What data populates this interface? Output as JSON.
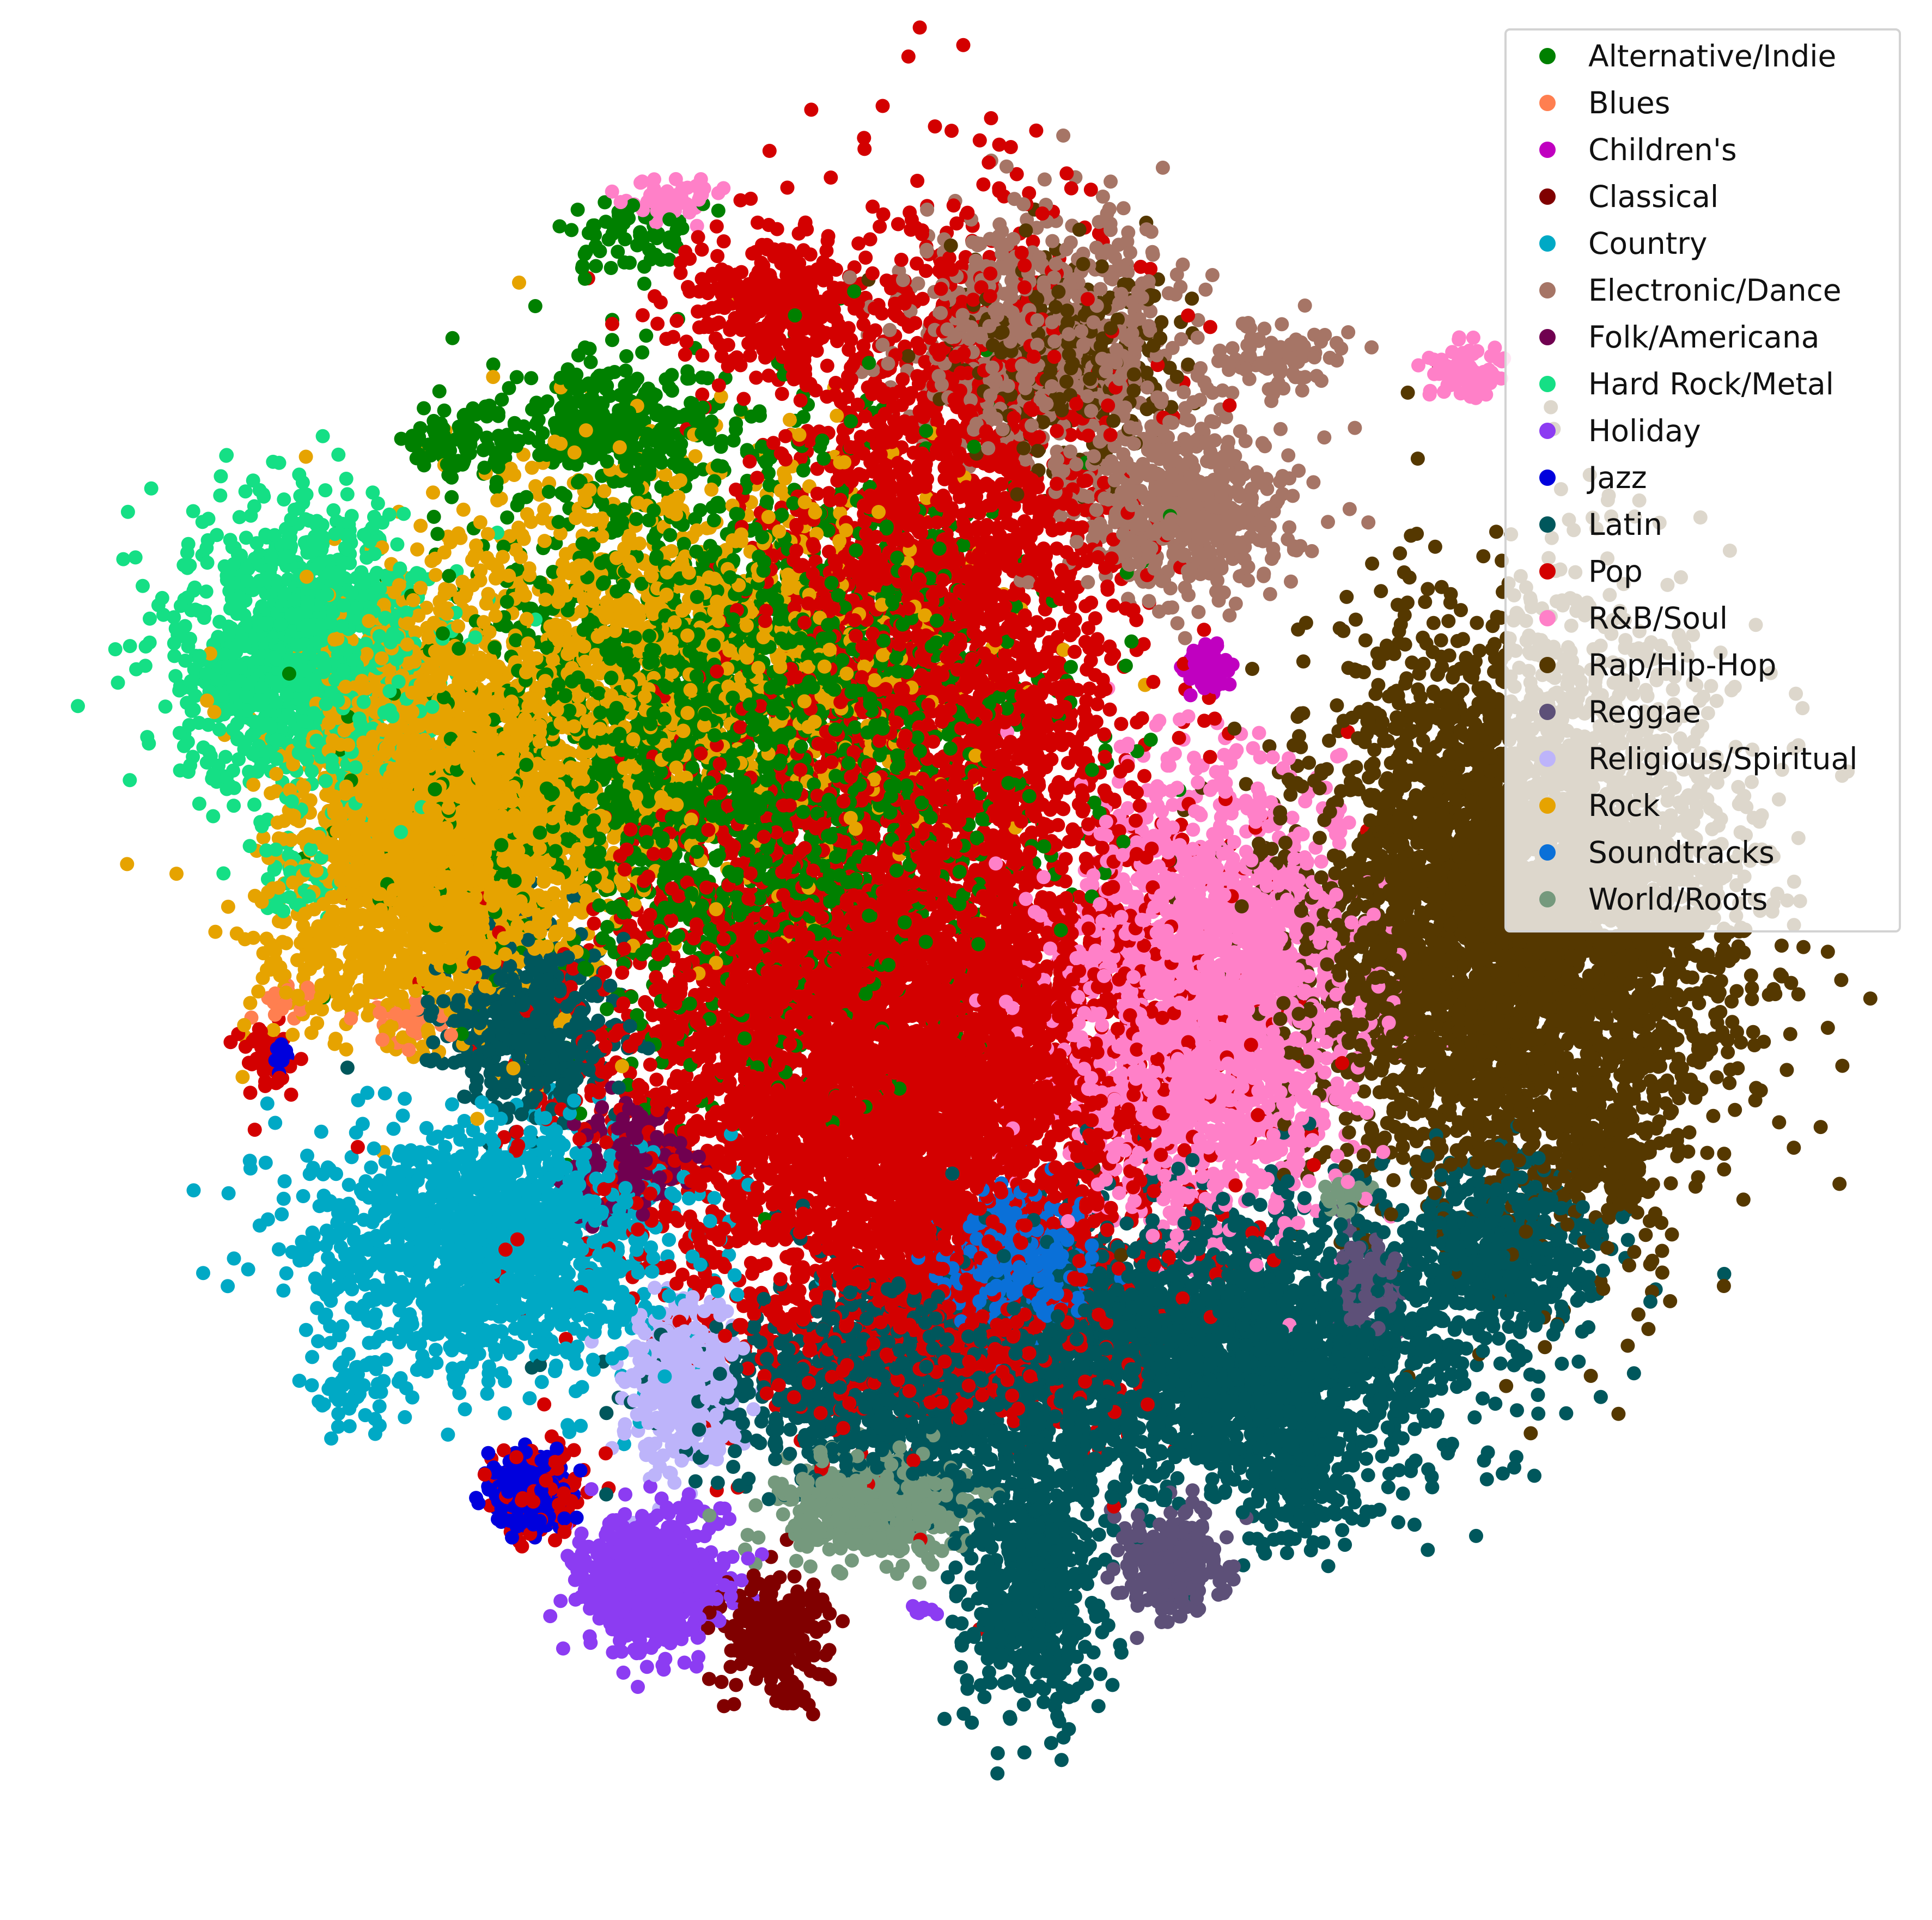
{
  "chart_data": {
    "type": "scatter",
    "title": "",
    "xlabel": "",
    "ylabel": "",
    "axes": "off",
    "grid": false,
    "legend_position": "top-right",
    "xlim": [
      0,
      100
    ],
    "ylim": [
      0,
      100
    ],
    "series": [
      {
        "name": "Alternative/Indie",
        "color": "#008000",
        "clusters": [
          {
            "cx": 36,
            "cy": 63,
            "sx": 8,
            "sy": 8,
            "n": 2600
          },
          {
            "cx": 29,
            "cy": 81,
            "sx": 3,
            "sy": 2,
            "n": 300
          },
          {
            "cx": 20,
            "cy": 80,
            "sx": 1.5,
            "sy": 1,
            "n": 80
          },
          {
            "cx": 30,
            "cy": 92,
            "sx": 2,
            "sy": 1,
            "n": 60
          }
        ]
      },
      {
        "name": "Blues",
        "color": "#ff7f50",
        "clusters": [
          {
            "cx": 17,
            "cy": 47,
            "sx": 1,
            "sy": 0.6,
            "n": 30
          },
          {
            "cx": 10,
            "cy": 48,
            "sx": 0.7,
            "sy": 0.6,
            "n": 15
          }
        ]
      },
      {
        "name": "Children's",
        "color": "#c000c0",
        "clusters": [
          {
            "cx": 63,
            "cy": 67,
            "sx": 0.6,
            "sy": 0.6,
            "n": 70
          }
        ]
      },
      {
        "name": "Classical",
        "color": "#800000",
        "clusters": [
          {
            "cx": 38,
            "cy": 12,
            "sx": 1.6,
            "sy": 1.6,
            "n": 220
          },
          {
            "cx": 39,
            "cy": 8,
            "sx": 0.6,
            "sy": 0.3,
            "n": 15
          }
        ]
      },
      {
        "name": "Country",
        "color": "#00a9c5",
        "clusters": [
          {
            "cx": 22,
            "cy": 34,
            "sx": 5,
            "sy": 3.5,
            "n": 1500
          },
          {
            "cx": 14,
            "cy": 26,
            "sx": 1.2,
            "sy": 1,
            "n": 50
          }
        ]
      },
      {
        "name": "Electronic/Dance",
        "color": "#a67566",
        "clusters": [
          {
            "cx": 54,
            "cy": 86,
            "sx": 4,
            "sy": 3.5,
            "n": 700
          },
          {
            "cx": 62,
            "cy": 76,
            "sx": 3,
            "sy": 2.5,
            "n": 500
          },
          {
            "cx": 67,
            "cy": 85,
            "sx": 2,
            "sy": 1,
            "n": 80
          }
        ]
      },
      {
        "name": "Folk/Americana",
        "color": "#700050",
        "clusters": [
          {
            "cx": 30,
            "cy": 39,
            "sx": 1.4,
            "sy": 1.6,
            "n": 160
          }
        ]
      },
      {
        "name": "Hard Rock/Metal",
        "color": "#15df85",
        "clusters": [
          {
            "cx": 11,
            "cy": 68,
            "sx": 3.5,
            "sy": 4,
            "n": 1300
          },
          {
            "cx": 11,
            "cy": 55,
            "sx": 1.2,
            "sy": 1,
            "n": 40
          }
        ]
      },
      {
        "name": "Holiday",
        "color": "#8c3cf2",
        "clusters": [
          {
            "cx": 31,
            "cy": 15,
            "sx": 2,
            "sy": 1.8,
            "n": 700
          },
          {
            "cx": 47,
            "cy": 13,
            "sx": 0.4,
            "sy": 0.4,
            "n": 8
          }
        ]
      },
      {
        "name": "Jazz",
        "color": "#0000dd",
        "clusters": [
          {
            "cx": 24,
            "cy": 20,
            "sx": 1.2,
            "sy": 1.1,
            "n": 220
          },
          {
            "cx": 10,
            "cy": 45,
            "sx": 0.5,
            "sy": 0.4,
            "n": 10
          }
        ]
      },
      {
        "name": "Latin",
        "color": "#00575c",
        "clusters": [
          {
            "cx": 64,
            "cy": 28,
            "sx": 7,
            "sy": 4,
            "n": 2300
          },
          {
            "cx": 46,
            "cy": 26,
            "sx": 6,
            "sy": 3,
            "n": 1100
          },
          {
            "cx": 53,
            "cy": 15,
            "sx": 2,
            "sy": 4,
            "n": 600
          },
          {
            "cx": 24,
            "cy": 47,
            "sx": 2.5,
            "sy": 2.5,
            "n": 500
          },
          {
            "cx": 80,
            "cy": 34,
            "sx": 3,
            "sy": 2.5,
            "n": 500
          },
          {
            "cx": 68,
            "cy": 20,
            "sx": 1.5,
            "sy": 2,
            "n": 120
          }
        ]
      },
      {
        "name": "Pop",
        "color": "#d30000",
        "clusters": [
          {
            "cx": 45,
            "cy": 45,
            "sx": 8,
            "sy": 8,
            "n": 5000
          },
          {
            "cx": 48,
            "cy": 72,
            "sx": 5,
            "sy": 10,
            "n": 2200
          },
          {
            "cx": 48,
            "cy": 30,
            "sx": 5,
            "sy": 3,
            "n": 700
          },
          {
            "cx": 38,
            "cy": 88,
            "sx": 3,
            "sy": 2,
            "n": 300
          },
          {
            "cx": 25,
            "cy": 20,
            "sx": 1.4,
            "sy": 1.2,
            "n": 120
          },
          {
            "cx": 9,
            "cy": 45,
            "sx": 1,
            "sy": 1.2,
            "n": 40
          }
        ]
      },
      {
        "name": "R&B/Soul",
        "color": "#ff80c8",
        "clusters": [
          {
            "cx": 63,
            "cy": 48,
            "sx": 4,
            "sy": 6,
            "n": 2200
          },
          {
            "cx": 78,
            "cy": 84,
            "sx": 1.2,
            "sy": 0.8,
            "n": 80
          },
          {
            "cx": 32,
            "cy": 94,
            "sx": 1.5,
            "sy": 0.7,
            "n": 50
          }
        ]
      },
      {
        "name": "Rap/Hip-Hop",
        "color": "#553800",
        "clusters": [
          {
            "cx": 81,
            "cy": 53,
            "sx": 6,
            "sy": 8,
            "n": 4500
          },
          {
            "cx": 86,
            "cy": 39,
            "sx": 1.5,
            "sy": 1.5,
            "n": 120
          },
          {
            "cx": 55,
            "cy": 85,
            "sx": 3,
            "sy": 3,
            "n": 300
          }
        ]
      },
      {
        "name": "Reggae",
        "color": "#5d5078",
        "clusters": [
          {
            "cx": 61,
            "cy": 16,
            "sx": 1.5,
            "sy": 1.5,
            "n": 260
          },
          {
            "cx": 72,
            "cy": 32,
            "sx": 1,
            "sy": 1.2,
            "n": 120
          }
        ]
      },
      {
        "name": "Religious/Spiritual",
        "color": "#bdb4fa",
        "clusters": [
          {
            "cx": 33,
            "cy": 26,
            "sx": 1.5,
            "sy": 2.5,
            "n": 400
          }
        ]
      },
      {
        "name": "Rock",
        "color": "#e6a300",
        "clusters": [
          {
            "cx": 19,
            "cy": 58,
            "sx": 4,
            "sy": 5,
            "n": 3000
          },
          {
            "cx": 32,
            "cy": 68,
            "sx": 8,
            "sy": 6,
            "n": 1300
          },
          {
            "cx": 12,
            "cy": 50,
            "sx": 2,
            "sy": 2,
            "n": 100
          }
        ]
      },
      {
        "name": "Soundtracks",
        "color": "#0a70d8",
        "clusters": [
          {
            "cx": 52,
            "cy": 33,
            "sx": 1.8,
            "sy": 1.8,
            "n": 500
          }
        ]
      },
      {
        "name": "World/Roots",
        "color": "#75997d",
        "clusters": [
          {
            "cx": 44,
            "cy": 19,
            "sx": 2.5,
            "sy": 1.5,
            "n": 500
          },
          {
            "cx": 71,
            "cy": 37,
            "sx": 0.6,
            "sy": 0.6,
            "n": 50
          }
        ]
      }
    ]
  }
}
